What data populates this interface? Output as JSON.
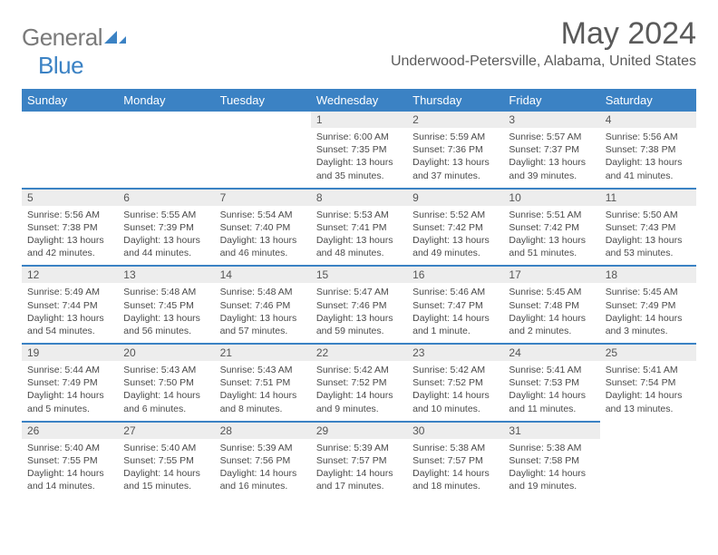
{
  "brand": {
    "gray": "General",
    "blue": "Blue"
  },
  "title": "May 2024",
  "location": "Underwood-Petersville, Alabama, United States",
  "daynames": [
    "Sunday",
    "Monday",
    "Tuesday",
    "Wednesday",
    "Thursday",
    "Friday",
    "Saturday"
  ],
  "colors": {
    "header_bg": "#3b82c4",
    "daynum_bg": "#ededed",
    "text": "#4a4a4a"
  },
  "weeks": [
    [
      null,
      null,
      null,
      {
        "n": "1",
        "sr": "6:00 AM",
        "ss": "7:35 PM",
        "dl": "13 hours and 35 minutes."
      },
      {
        "n": "2",
        "sr": "5:59 AM",
        "ss": "7:36 PM",
        "dl": "13 hours and 37 minutes."
      },
      {
        "n": "3",
        "sr": "5:57 AM",
        "ss": "7:37 PM",
        "dl": "13 hours and 39 minutes."
      },
      {
        "n": "4",
        "sr": "5:56 AM",
        "ss": "7:38 PM",
        "dl": "13 hours and 41 minutes."
      }
    ],
    [
      {
        "n": "5",
        "sr": "5:56 AM",
        "ss": "7:38 PM",
        "dl": "13 hours and 42 minutes."
      },
      {
        "n": "6",
        "sr": "5:55 AM",
        "ss": "7:39 PM",
        "dl": "13 hours and 44 minutes."
      },
      {
        "n": "7",
        "sr": "5:54 AM",
        "ss": "7:40 PM",
        "dl": "13 hours and 46 minutes."
      },
      {
        "n": "8",
        "sr": "5:53 AM",
        "ss": "7:41 PM",
        "dl": "13 hours and 48 minutes."
      },
      {
        "n": "9",
        "sr": "5:52 AM",
        "ss": "7:42 PM",
        "dl": "13 hours and 49 minutes."
      },
      {
        "n": "10",
        "sr": "5:51 AM",
        "ss": "7:42 PM",
        "dl": "13 hours and 51 minutes."
      },
      {
        "n": "11",
        "sr": "5:50 AM",
        "ss": "7:43 PM",
        "dl": "13 hours and 53 minutes."
      }
    ],
    [
      {
        "n": "12",
        "sr": "5:49 AM",
        "ss": "7:44 PM",
        "dl": "13 hours and 54 minutes."
      },
      {
        "n": "13",
        "sr": "5:48 AM",
        "ss": "7:45 PM",
        "dl": "13 hours and 56 minutes."
      },
      {
        "n": "14",
        "sr": "5:48 AM",
        "ss": "7:46 PM",
        "dl": "13 hours and 57 minutes."
      },
      {
        "n": "15",
        "sr": "5:47 AM",
        "ss": "7:46 PM",
        "dl": "13 hours and 59 minutes."
      },
      {
        "n": "16",
        "sr": "5:46 AM",
        "ss": "7:47 PM",
        "dl": "14 hours and 1 minute."
      },
      {
        "n": "17",
        "sr": "5:45 AM",
        "ss": "7:48 PM",
        "dl": "14 hours and 2 minutes."
      },
      {
        "n": "18",
        "sr": "5:45 AM",
        "ss": "7:49 PM",
        "dl": "14 hours and 3 minutes."
      }
    ],
    [
      {
        "n": "19",
        "sr": "5:44 AM",
        "ss": "7:49 PM",
        "dl": "14 hours and 5 minutes."
      },
      {
        "n": "20",
        "sr": "5:43 AM",
        "ss": "7:50 PM",
        "dl": "14 hours and 6 minutes."
      },
      {
        "n": "21",
        "sr": "5:43 AM",
        "ss": "7:51 PM",
        "dl": "14 hours and 8 minutes."
      },
      {
        "n": "22",
        "sr": "5:42 AM",
        "ss": "7:52 PM",
        "dl": "14 hours and 9 minutes."
      },
      {
        "n": "23",
        "sr": "5:42 AM",
        "ss": "7:52 PM",
        "dl": "14 hours and 10 minutes."
      },
      {
        "n": "24",
        "sr": "5:41 AM",
        "ss": "7:53 PM",
        "dl": "14 hours and 11 minutes."
      },
      {
        "n": "25",
        "sr": "5:41 AM",
        "ss": "7:54 PM",
        "dl": "14 hours and 13 minutes."
      }
    ],
    [
      {
        "n": "26",
        "sr": "5:40 AM",
        "ss": "7:55 PM",
        "dl": "14 hours and 14 minutes."
      },
      {
        "n": "27",
        "sr": "5:40 AM",
        "ss": "7:55 PM",
        "dl": "14 hours and 15 minutes."
      },
      {
        "n": "28",
        "sr": "5:39 AM",
        "ss": "7:56 PM",
        "dl": "14 hours and 16 minutes."
      },
      {
        "n": "29",
        "sr": "5:39 AM",
        "ss": "7:57 PM",
        "dl": "14 hours and 17 minutes."
      },
      {
        "n": "30",
        "sr": "5:38 AM",
        "ss": "7:57 PM",
        "dl": "14 hours and 18 minutes."
      },
      {
        "n": "31",
        "sr": "5:38 AM",
        "ss": "7:58 PM",
        "dl": "14 hours and 19 minutes."
      },
      null
    ]
  ],
  "labels": {
    "sunrise": "Sunrise: ",
    "sunset": "Sunset: ",
    "daylight": "Daylight: "
  }
}
